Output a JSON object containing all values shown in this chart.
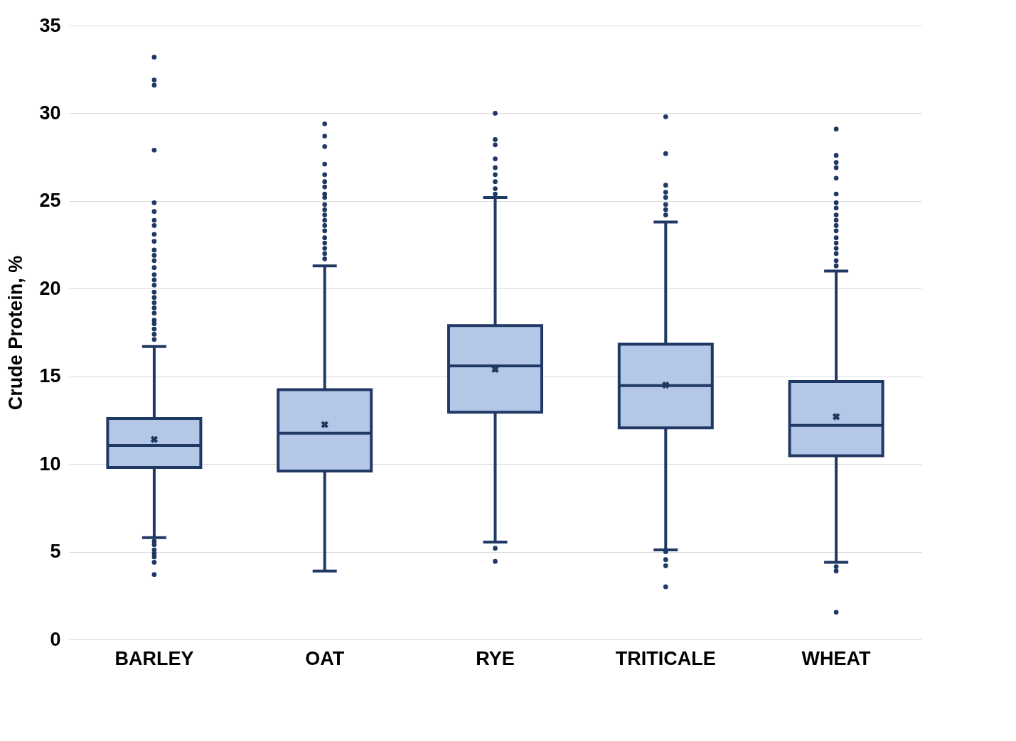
{
  "chart_data": {
    "type": "box",
    "ylabel": "Crude Protein, %",
    "categories": [
      "BARLEY",
      "OAT",
      "RYE",
      "TRITICALE",
      "WHEAT"
    ],
    "color": "#b4c7e7",
    "ylim": [
      0,
      35
    ],
    "yticks": [
      0,
      5,
      10,
      15,
      20,
      25,
      30,
      35
    ],
    "grid": "y",
    "boxes": [
      {
        "low": 5.8,
        "q1": 9.8,
        "median": 11.06,
        "q3": 12.6,
        "high": 16.7,
        "mean": 11.4,
        "outliers": [
          33.2,
          31.9,
          31.6,
          27.9,
          24.9,
          24.4,
          23.9,
          23.6,
          23.1,
          22.7,
          22.2,
          21.9,
          21.6,
          21.2,
          20.8,
          20.5,
          20.2,
          19.8,
          19.5,
          19.2,
          18.9,
          18.6,
          18.2,
          18.0,
          17.7,
          17.4,
          17.1,
          5.6,
          5.4,
          5.1,
          4.9,
          4.7,
          4.4,
          3.7
        ]
      },
      {
        "low": 3.9,
        "q1": 9.6,
        "median": 11.76,
        "q3": 14.24,
        "high": 21.3,
        "mean": 12.25,
        "outliers": [
          29.4,
          28.7,
          28.1,
          27.1,
          26.5,
          26.1,
          25.8,
          25.4,
          25.2,
          24.8,
          24.5,
          24.2,
          23.9,
          23.6,
          23.3,
          22.9,
          22.6,
          22.3,
          22.0,
          21.7
        ]
      },
      {
        "low": 5.55,
        "q1": 12.95,
        "median": 15.6,
        "q3": 17.9,
        "high": 25.2,
        "mean": 15.4,
        "outliers": [
          30.0,
          28.5,
          28.2,
          27.4,
          26.9,
          26.5,
          26.1,
          25.7,
          25.4,
          5.2,
          4.45
        ]
      },
      {
        "low": 5.1,
        "q1": 12.06,
        "median": 14.47,
        "q3": 16.83,
        "high": 23.8,
        "mean": 14.5,
        "outliers": [
          29.8,
          27.7,
          25.9,
          25.5,
          25.2,
          24.8,
          24.5,
          24.2,
          5.0,
          4.55,
          4.2,
          3.0
        ]
      },
      {
        "low": 4.4,
        "q1": 10.47,
        "median": 12.2,
        "q3": 14.7,
        "high": 21.0,
        "mean": 12.7,
        "outliers": [
          29.1,
          27.6,
          27.2,
          26.9,
          26.3,
          25.4,
          24.9,
          24.6,
          24.2,
          23.9,
          23.6,
          23.3,
          22.9,
          22.6,
          22.3,
          22.0,
          21.6,
          21.3,
          4.15,
          3.9,
          1.55
        ]
      }
    ]
  }
}
